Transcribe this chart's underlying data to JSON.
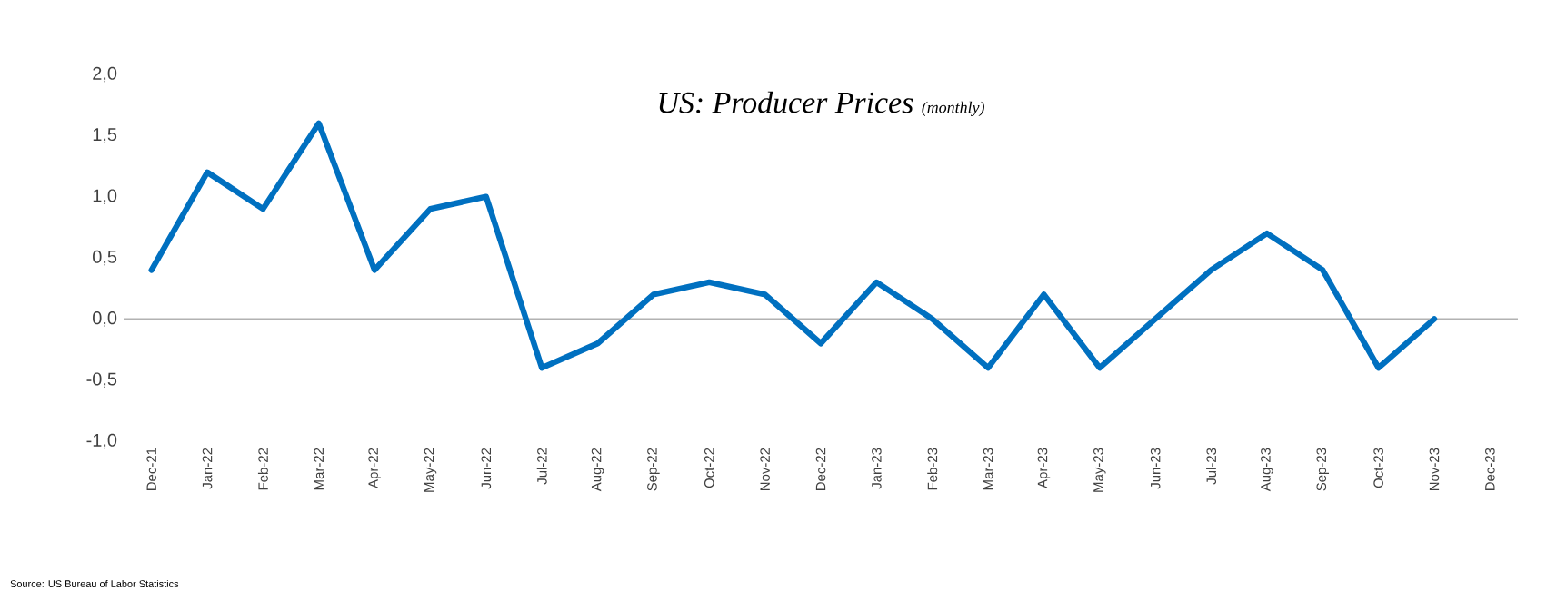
{
  "chart_data": {
    "type": "line",
    "title": "US: Producer Prices",
    "subtitle": "(monthly)",
    "categories": [
      "Dec-21",
      "Jan-22",
      "Feb-22",
      "Mar-22",
      "Apr-22",
      "May-22",
      "Jun-22",
      "Jul-22",
      "Aug-22",
      "Sep-22",
      "Oct-22",
      "Nov-22",
      "Dec-22",
      "Jan-23",
      "Feb-23",
      "Mar-23",
      "Apr-23",
      "May-23",
      "Jun-23",
      "Jul-23",
      "Aug-23",
      "Sep-23",
      "Oct-23",
      "Nov-23",
      "Dec-23"
    ],
    "series": [
      {
        "color": "#0070c0",
        "values": [
          0.4,
          1.2,
          0.9,
          1.6,
          0.4,
          0.9,
          1.0,
          -0.4,
          -0.2,
          0.2,
          0.3,
          0.2,
          -0.2,
          0.3,
          0.0,
          -0.4,
          0.2,
          -0.4,
          0.0,
          0.4,
          0.7,
          0.4,
          -0.4,
          0.0,
          null
        ]
      }
    ],
    "ylim": [
      -1.0,
      2.0
    ],
    "yticks": [
      {
        "value": -1.0,
        "label": "-1,0"
      },
      {
        "value": -0.5,
        "label": "-0,5"
      },
      {
        "value": 0.0,
        "label": "0,0"
      },
      {
        "value": 0.5,
        "label": "0,5"
      },
      {
        "value": 1.0,
        "label": "1,0"
      },
      {
        "value": 1.5,
        "label": "1,5"
      },
      {
        "value": 2.0,
        "label": "2,0"
      }
    ],
    "marker": "none",
    "line_style": "solid",
    "annotations": [
      "Source: US Bureau of Labor Statistics"
    ]
  }
}
